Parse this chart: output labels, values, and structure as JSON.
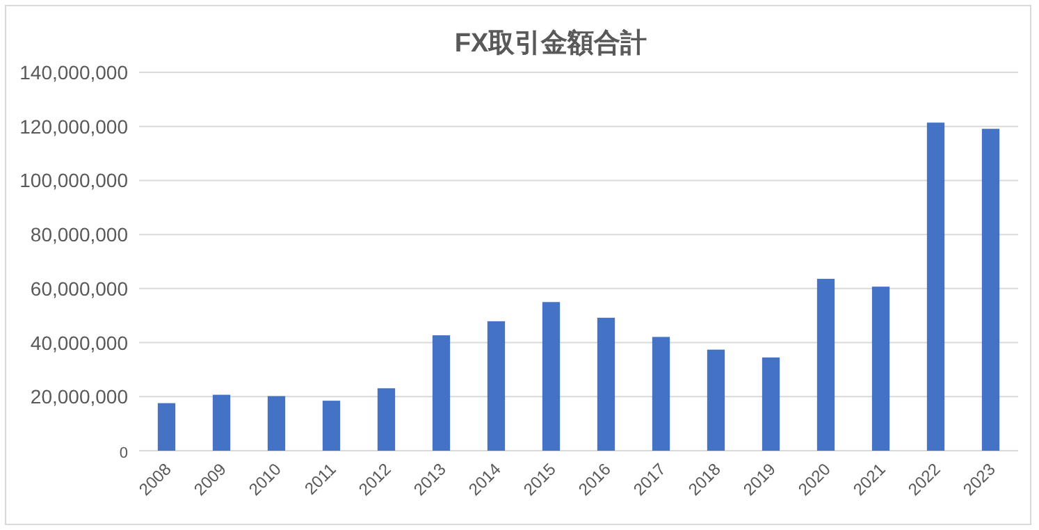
{
  "chart_data": {
    "type": "bar",
    "title": "FX取引金額合計",
    "categories": [
      "2008",
      "2009",
      "2010",
      "2011",
      "2012",
      "2013",
      "2014",
      "2015",
      "2016",
      "2017",
      "2018",
      "2019",
      "2020",
      "2021",
      "2022",
      "2023"
    ],
    "values": [
      17600000,
      20700000,
      20200000,
      18500000,
      23100000,
      42700000,
      47900000,
      55000000,
      49200000,
      42100000,
      37400000,
      34500000,
      63600000,
      60700000,
      121400000,
      119100000
    ],
    "color": "#4472c4",
    "ylim": [
      0,
      140000000
    ],
    "yticks": [
      {
        "value": 0,
        "label": "0"
      },
      {
        "value": 20000000,
        "label": "20,000,000"
      },
      {
        "value": 40000000,
        "label": "40,000,000"
      },
      {
        "value": 60000000,
        "label": "60,000,000"
      },
      {
        "value": 80000000,
        "label": "80,000,000"
      },
      {
        "value": 100000000,
        "label": "100,000,000"
      },
      {
        "value": 120000000,
        "label": "120,000,000"
      },
      {
        "value": 140000000,
        "label": "140,000,000"
      }
    ],
    "grid": "y"
  }
}
